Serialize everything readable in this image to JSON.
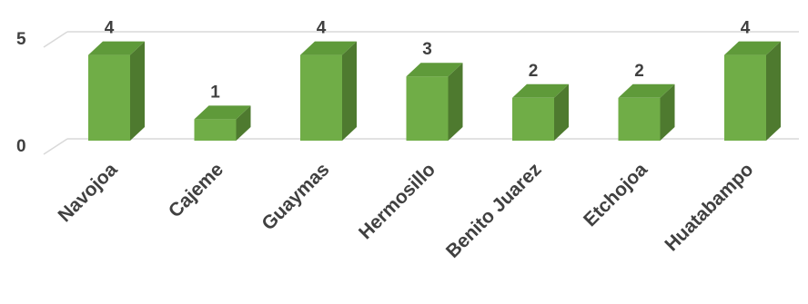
{
  "chart_data": {
    "type": "bar",
    "title": "",
    "xlabel": "",
    "ylabel": "",
    "categories": [
      "Navojoa",
      "Cajeme",
      "Guaymas",
      "Hermosillo",
      "Benito Juarez",
      "Etchojoa",
      "Huatabampo"
    ],
    "values": [
      4,
      1,
      4,
      3,
      2,
      2,
      4
    ],
    "ylim": [
      0,
      5
    ],
    "yticks": [
      "0",
      "5"
    ],
    "data_labels": [
      "4",
      "1",
      "4",
      "3",
      "2",
      "2",
      "4"
    ],
    "grid": true,
    "style": "3d-column",
    "colors": {
      "front": "#70ad47",
      "side": "#4e7a2f",
      "top": "#5f9a3a",
      "grid": "#d9d9d9"
    }
  }
}
